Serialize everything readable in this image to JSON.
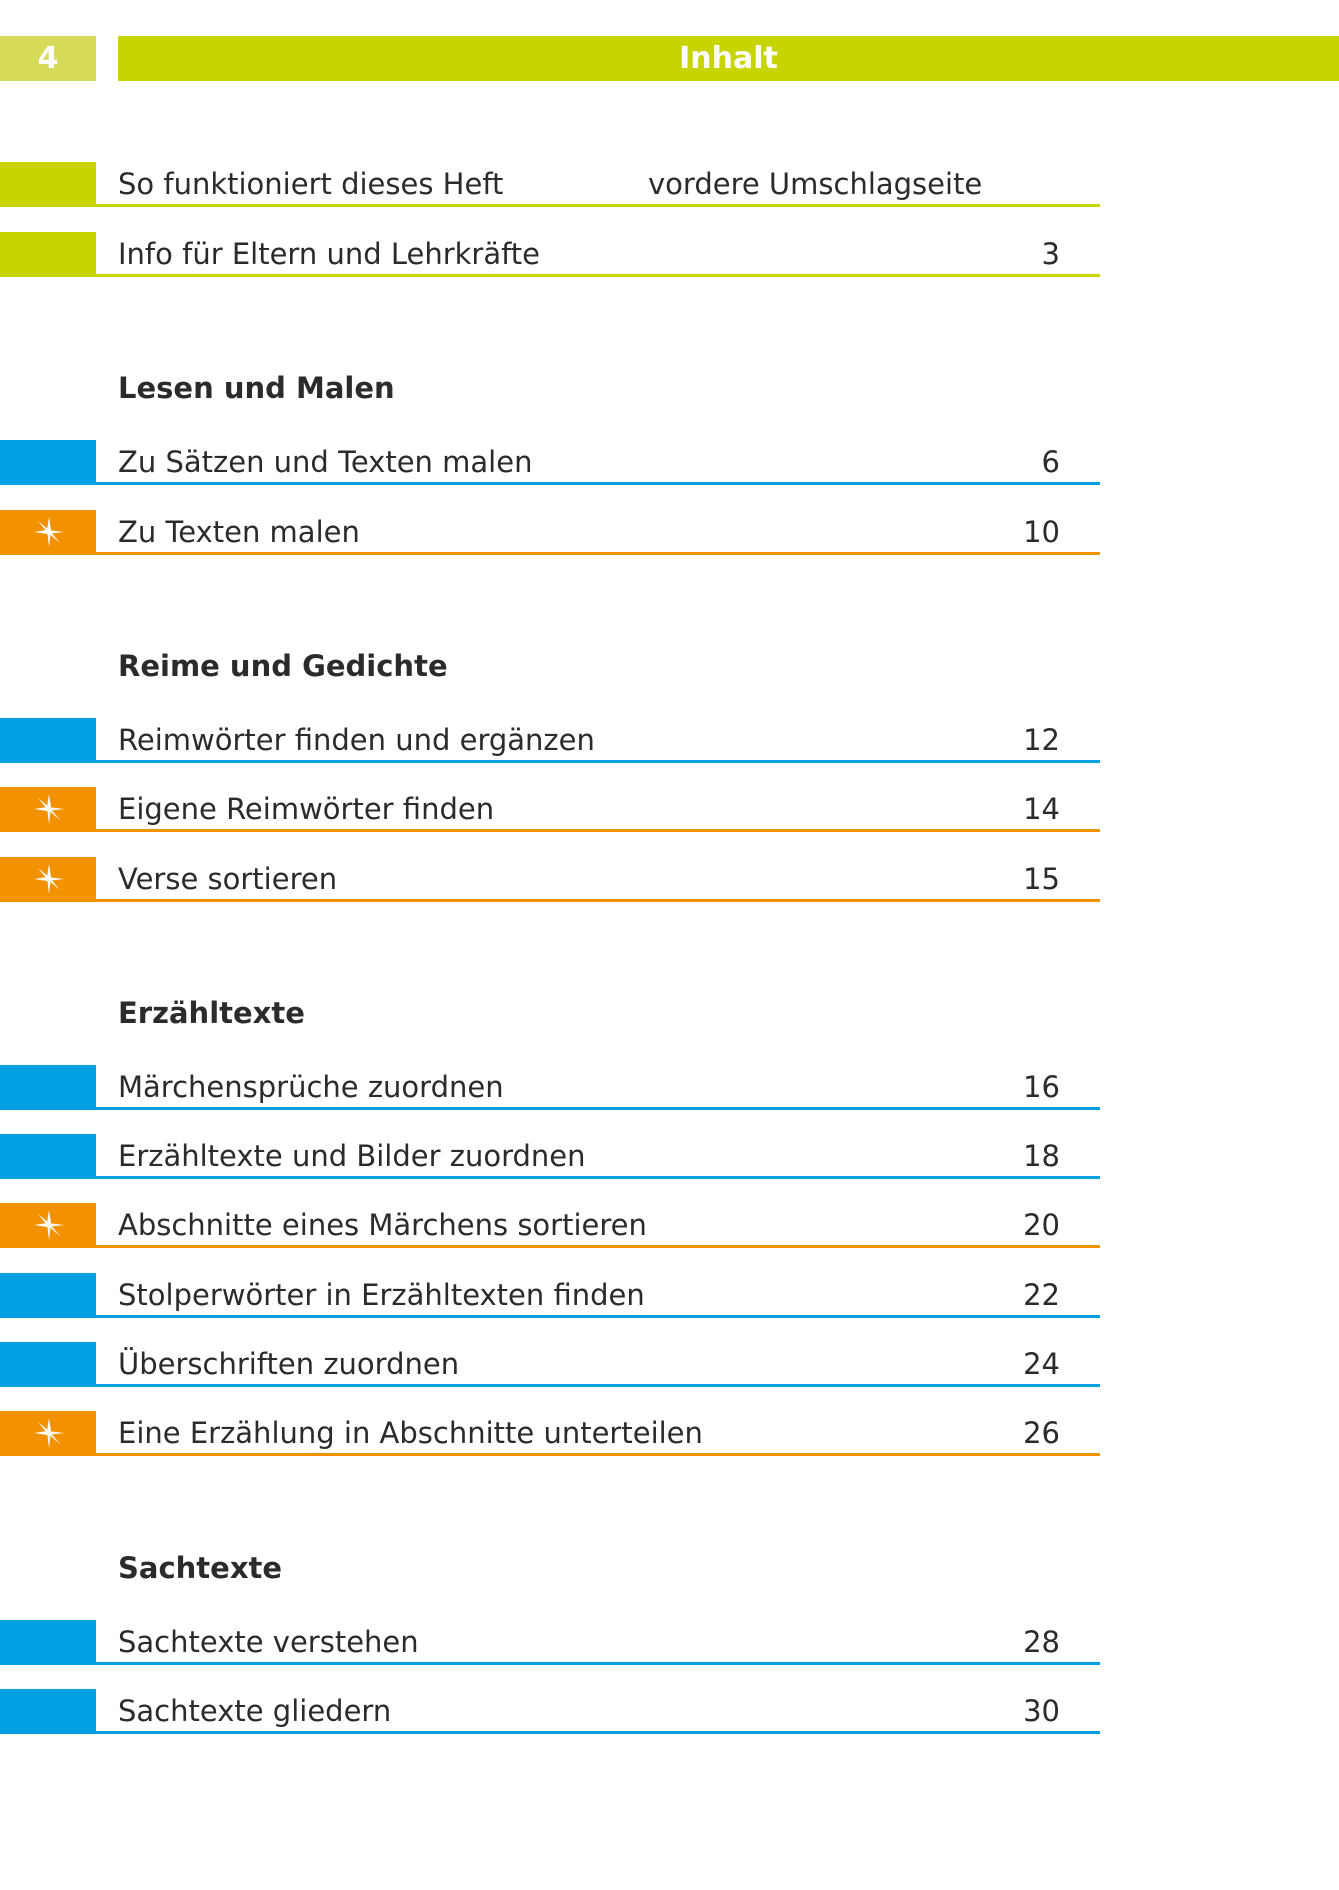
{
  "header": {
    "page_number": "4",
    "title": "Inhalt"
  },
  "colors": {
    "green": "#c8d400",
    "light_green": "#d6dc5a",
    "blue": "#00a0e3",
    "orange": "#f39200"
  },
  "intro": [
    {
      "label": "So funktioniert dieses Heft",
      "middle": "vordere Umschlagseite",
      "page": "",
      "color": "green"
    },
    {
      "label": "Info für Eltern und Lehrkräfte",
      "middle": "",
      "page": "3",
      "color": "green"
    }
  ],
  "sections": [
    {
      "heading": "Lesen und Malen",
      "entries": [
        {
          "label": "Zu Sätzen und Texten malen",
          "page": "6",
          "color": "blue",
          "star": false
        },
        {
          "label": "Zu Texten malen",
          "page": "10",
          "color": "orange",
          "star": true
        }
      ]
    },
    {
      "heading": "Reime und Gedichte",
      "entries": [
        {
          "label": "Reimwörter finden und ergänzen",
          "page": "12",
          "color": "blue",
          "star": false
        },
        {
          "label": "Eigene Reimwörter finden",
          "page": "14",
          "color": "orange",
          "star": true
        },
        {
          "label": "Verse sortieren",
          "page": "15",
          "color": "orange",
          "star": true
        }
      ]
    },
    {
      "heading": "Erzähltexte",
      "entries": [
        {
          "label": "Märchensprüche zuordnen",
          "page": "16",
          "color": "blue",
          "star": false
        },
        {
          "label": "Erzähltexte und Bilder zuordnen",
          "page": "18",
          "color": "blue",
          "star": false
        },
        {
          "label": "Abschnitte eines Märchens sortieren",
          "page": "20",
          "color": "orange",
          "star": true
        },
        {
          "label": "Stolperwörter in Erzähltexten finden",
          "page": "22",
          "color": "blue",
          "star": false
        },
        {
          "label": "Überschriften zuordnen",
          "page": "24",
          "color": "blue",
          "star": false
        },
        {
          "label": "Eine Erzählung in Abschnitte unterteilen",
          "page": "26",
          "color": "orange",
          "star": true
        }
      ]
    },
    {
      "heading": "Sachtexte",
      "entries": [
        {
          "label": "Sachtexte verstehen",
          "page": "28",
          "color": "blue",
          "star": false
        },
        {
          "label": "Sachtexte gliedern",
          "page": "30",
          "color": "blue",
          "star": false
        }
      ]
    }
  ]
}
